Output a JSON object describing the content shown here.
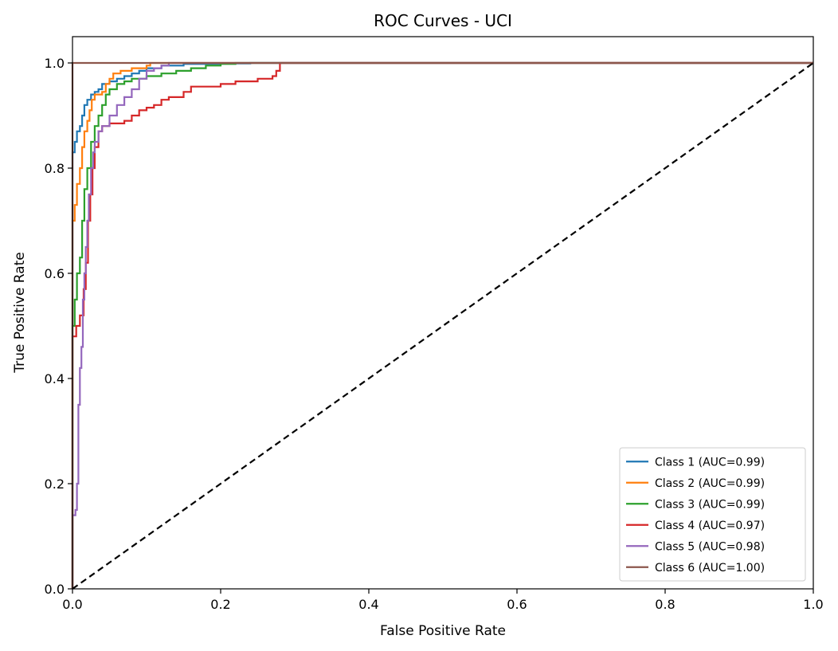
{
  "chart_data": {
    "type": "line",
    "title": "ROC Curves - UCI",
    "xlabel": "False Positive Rate",
    "ylabel": "True Positive Rate",
    "xlim": [
      0.0,
      1.0
    ],
    "ylim": [
      0.0,
      1.05
    ],
    "xticks": [
      "0.0",
      "0.2",
      "0.4",
      "0.6",
      "0.8",
      "1.0"
    ],
    "yticks": [
      "0.0",
      "0.2",
      "0.4",
      "0.6",
      "0.8",
      "1.0"
    ],
    "grid": false,
    "legend_position": "lower-right",
    "series": [
      {
        "name": "Class 1 (AUC=0.99)",
        "color": "#1f77b4",
        "points": [
          [
            0.0,
            0.0
          ],
          [
            0.0,
            0.83
          ],
          [
            0.003,
            0.85
          ],
          [
            0.006,
            0.87
          ],
          [
            0.01,
            0.88
          ],
          [
            0.013,
            0.9
          ],
          [
            0.016,
            0.92
          ],
          [
            0.02,
            0.93
          ],
          [
            0.025,
            0.94
          ],
          [
            0.03,
            0.945
          ],
          [
            0.035,
            0.95
          ],
          [
            0.04,
            0.96
          ],
          [
            0.05,
            0.965
          ],
          [
            0.06,
            0.97
          ],
          [
            0.07,
            0.975
          ],
          [
            0.08,
            0.98
          ],
          [
            0.09,
            0.985
          ],
          [
            0.1,
            0.99
          ],
          [
            0.12,
            0.995
          ],
          [
            0.15,
            0.998
          ],
          [
            0.2,
            0.999
          ],
          [
            0.24,
            1.0
          ],
          [
            0.79,
            1.0
          ],
          [
            1.0,
            1.0
          ]
        ]
      },
      {
        "name": "Class 2 (AUC=0.99)",
        "color": "#ff7f0e",
        "points": [
          [
            0.0,
            0.0
          ],
          [
            0.0,
            0.7
          ],
          [
            0.003,
            0.73
          ],
          [
            0.006,
            0.77
          ],
          [
            0.01,
            0.8
          ],
          [
            0.013,
            0.84
          ],
          [
            0.016,
            0.87
          ],
          [
            0.02,
            0.89
          ],
          [
            0.023,
            0.91
          ],
          [
            0.026,
            0.93
          ],
          [
            0.03,
            0.94
          ],
          [
            0.04,
            0.945
          ],
          [
            0.045,
            0.96
          ],
          [
            0.05,
            0.97
          ],
          [
            0.055,
            0.98
          ],
          [
            0.065,
            0.985
          ],
          [
            0.08,
            0.99
          ],
          [
            0.1,
            0.995
          ],
          [
            0.105,
            1.0
          ],
          [
            1.0,
            1.0
          ]
        ]
      },
      {
        "name": "Class 3 (AUC=0.99)",
        "color": "#2ca02c",
        "points": [
          [
            0.0,
            0.0
          ],
          [
            0.0,
            0.5
          ],
          [
            0.003,
            0.55
          ],
          [
            0.006,
            0.6
          ],
          [
            0.01,
            0.63
          ],
          [
            0.013,
            0.7
          ],
          [
            0.016,
            0.76
          ],
          [
            0.02,
            0.8
          ],
          [
            0.025,
            0.85
          ],
          [
            0.03,
            0.88
          ],
          [
            0.035,
            0.9
          ],
          [
            0.04,
            0.92
          ],
          [
            0.045,
            0.94
          ],
          [
            0.05,
            0.95
          ],
          [
            0.06,
            0.96
          ],
          [
            0.07,
            0.965
          ],
          [
            0.08,
            0.97
          ],
          [
            0.1,
            0.975
          ],
          [
            0.12,
            0.98
          ],
          [
            0.14,
            0.985
          ],
          [
            0.16,
            0.99
          ],
          [
            0.18,
            0.995
          ],
          [
            0.2,
            0.998
          ],
          [
            0.22,
            1.0
          ],
          [
            1.0,
            1.0
          ]
        ]
      },
      {
        "name": "Class 4 (AUC=0.97)",
        "color": "#d62728",
        "points": [
          [
            0.0,
            0.0
          ],
          [
            0.0,
            0.48
          ],
          [
            0.005,
            0.5
          ],
          [
            0.01,
            0.52
          ],
          [
            0.015,
            0.57
          ],
          [
            0.018,
            0.62
          ],
          [
            0.021,
            0.7
          ],
          [
            0.024,
            0.75
          ],
          [
            0.027,
            0.8
          ],
          [
            0.03,
            0.84
          ],
          [
            0.035,
            0.87
          ],
          [
            0.04,
            0.88
          ],
          [
            0.05,
            0.885
          ],
          [
            0.07,
            0.89
          ],
          [
            0.08,
            0.9
          ],
          [
            0.09,
            0.91
          ],
          [
            0.1,
            0.915
          ],
          [
            0.11,
            0.92
          ],
          [
            0.12,
            0.93
          ],
          [
            0.13,
            0.935
          ],
          [
            0.15,
            0.945
          ],
          [
            0.16,
            0.955
          ],
          [
            0.2,
            0.96
          ],
          [
            0.22,
            0.965
          ],
          [
            0.25,
            0.97
          ],
          [
            0.27,
            0.975
          ],
          [
            0.275,
            0.985
          ],
          [
            0.28,
            1.0
          ],
          [
            1.0,
            1.0
          ]
        ]
      },
      {
        "name": "Class 5 (AUC=0.98)",
        "color": "#9467bd",
        "points": [
          [
            0.0,
            0.0
          ],
          [
            0.0,
            0.14
          ],
          [
            0.004,
            0.15
          ],
          [
            0.006,
            0.2
          ],
          [
            0.008,
            0.35
          ],
          [
            0.01,
            0.42
          ],
          [
            0.012,
            0.46
          ],
          [
            0.014,
            0.55
          ],
          [
            0.016,
            0.6
          ],
          [
            0.018,
            0.65
          ],
          [
            0.02,
            0.7
          ],
          [
            0.022,
            0.75
          ],
          [
            0.025,
            0.8
          ],
          [
            0.028,
            0.83
          ],
          [
            0.03,
            0.85
          ],
          [
            0.035,
            0.87
          ],
          [
            0.04,
            0.88
          ],
          [
            0.05,
            0.9
          ],
          [
            0.06,
            0.92
          ],
          [
            0.07,
            0.935
          ],
          [
            0.08,
            0.95
          ],
          [
            0.09,
            0.97
          ],
          [
            0.1,
            0.985
          ],
          [
            0.11,
            0.99
          ],
          [
            0.12,
            0.995
          ],
          [
            0.13,
            1.0
          ],
          [
            1.0,
            1.0
          ]
        ]
      },
      {
        "name": "Class 6 (AUC=1.00)",
        "color": "#8c564b",
        "points": [
          [
            0.0,
            0.0
          ],
          [
            0.0,
            1.0
          ],
          [
            1.0,
            1.0
          ]
        ]
      }
    ],
    "reference_line": {
      "color": "#000000",
      "style": "dashed",
      "points": [
        [
          0.0,
          0.0
        ],
        [
          1.0,
          1.0
        ]
      ]
    }
  }
}
